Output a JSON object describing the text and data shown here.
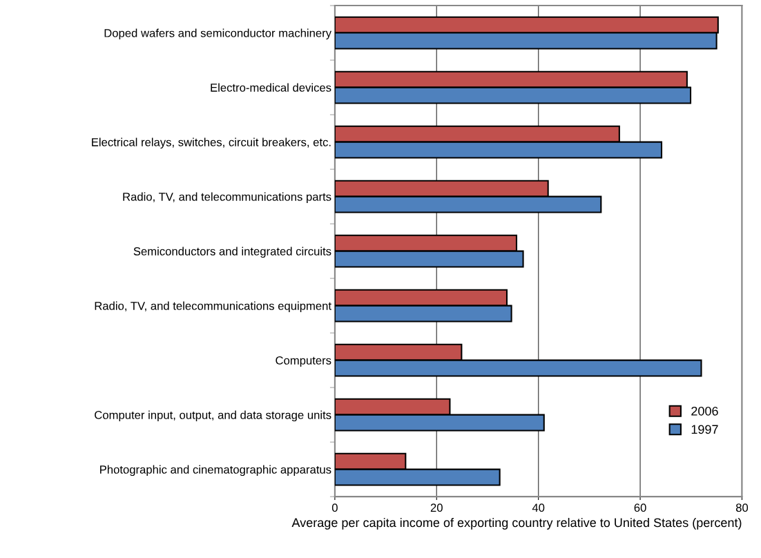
{
  "chart_data": {
    "type": "bar",
    "orientation": "horizontal",
    "xlabel": "Average per capita income of exporting country relative to United States (percent)",
    "categories": [
      "Doped wafers and semiconductor machinery",
      "Electro-medical devices",
      "Electrical relays, switches, circuit breakers, etc.",
      "Radio, TV, and telecommunications parts",
      "Semiconductors and integrated circuits",
      "Radio, TV, and telecommunications equipment",
      "Computers",
      "Computer input, output, and data storage units",
      "Photographic and cinematographic apparatus"
    ],
    "series": [
      {
        "name": "2006",
        "color": "#c0504d",
        "values": [
          75.3,
          69.2,
          55.9,
          41.9,
          35.7,
          33.8,
          24.9,
          22.6,
          13.9
        ]
      },
      {
        "name": "1997",
        "color": "#4f81bd",
        "values": [
          75.0,
          69.9,
          64.2,
          52.3,
          37.0,
          34.7,
          72.0,
          41.1,
          32.4
        ]
      }
    ],
    "xlim": [
      0,
      80
    ],
    "xticks": [
      0,
      20,
      40,
      60,
      80
    ],
    "grid": "x",
    "legend": "bottom right"
  }
}
